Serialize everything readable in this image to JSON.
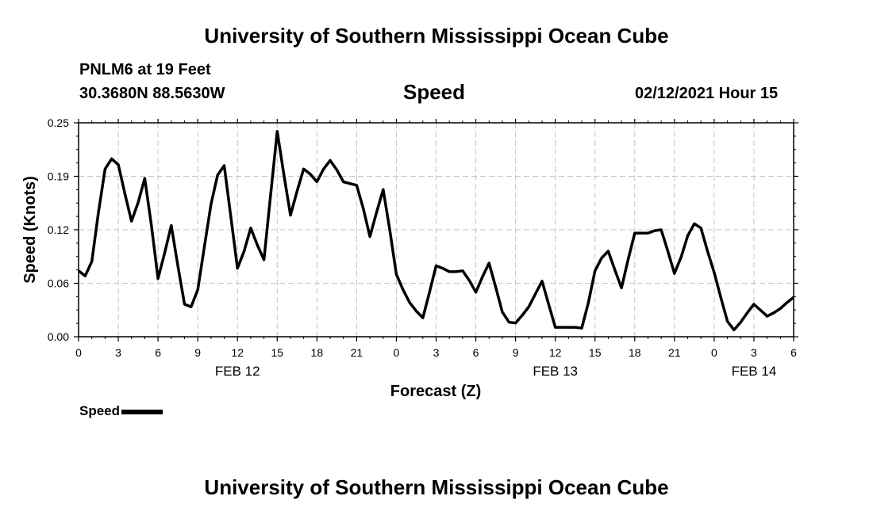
{
  "header": {
    "title": "University of Southern Mississippi Ocean Cube",
    "station": "PNLM6 at 19 Feet",
    "coords": "30.3680N 88.5630W",
    "datetime": "02/12/2021 Hour 15",
    "footer_title": "University of Southern Mississippi Ocean Cube"
  },
  "chart_data": {
    "type": "line",
    "title": "Speed",
    "xlabel": "Forecast (Z)",
    "ylabel": "Speed (Knots)",
    "x_unit": "forecast hour from 2021-02-12 00Z",
    "xlim": [
      0,
      54
    ],
    "ylim": [
      0,
      0.25
    ],
    "yticks": [
      "0.00",
      "0.06",
      "0.12",
      "0.19",
      "0.25"
    ],
    "ytick_values": [
      0,
      0.0625,
      0.125,
      0.1875,
      0.25
    ],
    "xticks": [
      "0",
      "3",
      "6",
      "9",
      "12",
      "15",
      "18",
      "21",
      "0",
      "3",
      "6",
      "9",
      "12",
      "15",
      "18",
      "21",
      "0",
      "3",
      "6"
    ],
    "xtick_values": [
      0,
      3,
      6,
      9,
      12,
      15,
      18,
      21,
      24,
      27,
      30,
      33,
      36,
      39,
      42,
      45,
      48,
      51,
      54
    ],
    "date_labels": [
      {
        "label": "FEB 12",
        "x": 12
      },
      {
        "label": "FEB 13",
        "x": 36
      },
      {
        "label": "FEB 14",
        "x": 51
      }
    ],
    "grid": true,
    "line_color": "#000000",
    "series": [
      {
        "name": "Speed",
        "x": [
          0,
          0.5,
          1,
          1.5,
          2,
          2.5,
          3,
          3.5,
          4,
          4.5,
          5,
          5.5,
          6,
          6.5,
          7,
          7.5,
          8,
          8.5,
          9,
          9.5,
          10,
          10.5,
          11,
          11.5,
          12,
          12.5,
          13,
          13.5,
          14,
          14.5,
          15,
          15.5,
          16,
          16.5,
          17,
          17.5,
          18,
          18.5,
          19,
          19.5,
          20,
          20.5,
          21,
          21.5,
          22,
          22.5,
          23,
          23.5,
          24,
          24.5,
          25,
          25.5,
          26,
          26.5,
          27,
          27.5,
          28,
          28.5,
          29,
          29.5,
          30,
          30.5,
          31,
          31.5,
          32,
          32.5,
          33,
          33.5,
          34,
          34.5,
          35,
          35.5,
          36,
          36.5,
          37,
          37.5,
          38,
          38.5,
          39,
          39.5,
          40,
          40.5,
          41,
          41.5,
          42,
          42.5,
          43,
          43.5,
          44,
          44.5,
          45,
          45.5,
          46,
          46.5,
          47,
          47.5,
          48,
          48.5,
          49,
          49.5,
          50,
          50.5,
          51,
          51.5,
          52,
          52.5,
          53,
          53.5,
          54
        ],
        "values": [
          0.077,
          0.071,
          0.088,
          0.145,
          0.196,
          0.208,
          0.201,
          0.167,
          0.135,
          0.157,
          0.185,
          0.13,
          0.068,
          0.098,
          0.13,
          0.083,
          0.038,
          0.035,
          0.055,
          0.105,
          0.155,
          0.189,
          0.2,
          0.14,
          0.08,
          0.1,
          0.127,
          0.107,
          0.09,
          0.165,
          0.24,
          0.19,
          0.142,
          0.17,
          0.196,
          0.19,
          0.181,
          0.196,
          0.206,
          0.195,
          0.181,
          0.179,
          0.177,
          0.15,
          0.117,
          0.145,
          0.172,
          0.125,
          0.073,
          0.055,
          0.04,
          0.03,
          0.022,
          0.052,
          0.083,
          0.08,
          0.076,
          0.076,
          0.077,
          0.066,
          0.052,
          0.07,
          0.086,
          0.058,
          0.029,
          0.017,
          0.016,
          0.025,
          0.035,
          0.05,
          0.065,
          0.038,
          0.011,
          0.011,
          0.011,
          0.011,
          0.01,
          0.04,
          0.077,
          0.092,
          0.1,
          0.078,
          0.057,
          0.09,
          0.121,
          0.121,
          0.121,
          0.124,
          0.125,
          0.1,
          0.074,
          0.093,
          0.118,
          0.132,
          0.127,
          0.1,
          0.075,
          0.046,
          0.018,
          0.008,
          0.017,
          0.028,
          0.038,
          0.031,
          0.024,
          0.028,
          0.033,
          0.04,
          0.046
        ]
      }
    ]
  },
  "legend": {
    "label": "Speed"
  }
}
